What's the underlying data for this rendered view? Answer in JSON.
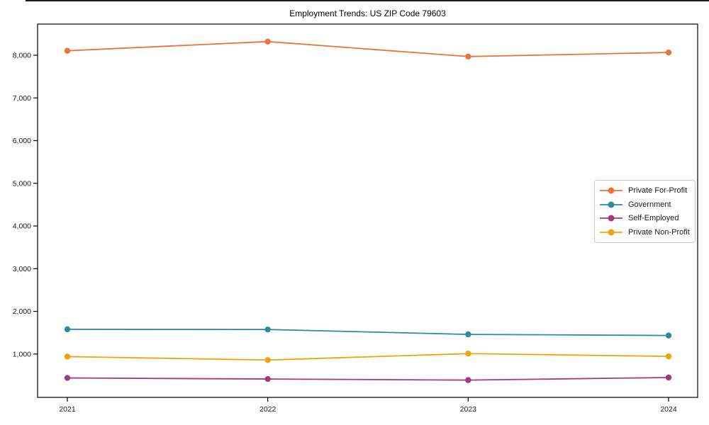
{
  "figure": {
    "title": "Employment Trends: US ZIP Code 79603"
  },
  "chart_data": {
    "type": "line",
    "title": "Employment Trends: US ZIP Code 79603",
    "categories": [
      "2021",
      "2022",
      "2023",
      "2024"
    ],
    "series": [
      {
        "name": "Private For-Profit",
        "color": "#E8743B",
        "values": [
          8105,
          8320,
          7970,
          8065
        ]
      },
      {
        "name": "Government",
        "color": "#2E8B9E",
        "values": [
          1580,
          1575,
          1460,
          1435
        ]
      },
      {
        "name": "Self-Employed",
        "color": "#A23B7D",
        "values": [
          440,
          415,
          390,
          450
        ]
      },
      {
        "name": "Private Non-Profit",
        "color": "#F0A30A",
        "values": [
          940,
          860,
          1010,
          945
        ]
      }
    ],
    "xlabel": "",
    "ylabel": "",
    "ylim": [
      -15,
      8730
    ],
    "yticks": [
      1000,
      2000,
      3000,
      4000,
      5000,
      6000,
      7000,
      8000
    ],
    "ytick_labels": [
      "1,000",
      "2,000",
      "3,000",
      "4,000",
      "5,000",
      "6,000",
      "7,000",
      "8,000"
    ],
    "grid": false,
    "legend_position": "center right",
    "marker": "circle",
    "axis_color": "#000000",
    "tick_label_color": "#1a1a1a"
  }
}
